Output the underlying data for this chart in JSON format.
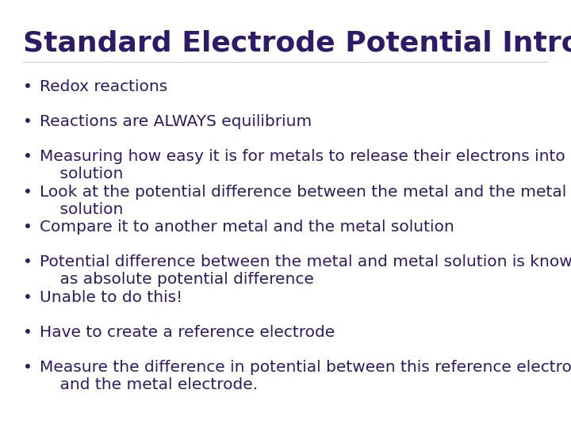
{
  "title": "Standard Electrode Potential Intro",
  "title_color": "#2d1b69",
  "title_fontsize": 26,
  "title_bold": true,
  "background_color": "#ffffff",
  "bullet_color": "#2d1b69",
  "bullet_fontsize": 14.5,
  "bullet_char": "•",
  "bullets": [
    "Redox reactions",
    "Reactions are ALWAYS equilibrium",
    "Measuring how easy it is for metals to release their electrons into a\n    solution",
    "Look at the potential difference between the metal and the metal\n    solution",
    "Compare it to another metal and the metal solution",
    "Potential difference between the metal and metal solution is known\n    as absolute potential difference",
    "Unable to do this!",
    "Have to create a reference electrode",
    "Measure the difference in potential between this reference electrode\n    and the metal electrode."
  ]
}
